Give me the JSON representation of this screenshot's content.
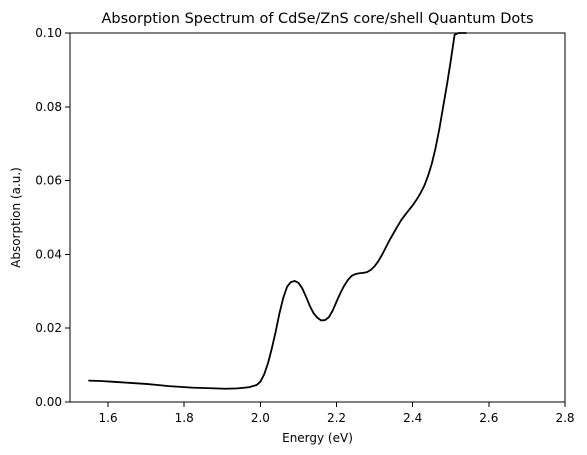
{
  "chart_data": {
    "type": "line",
    "title": "Absorption Spectrum of CdSe/ZnS core/shell Quantum Dots",
    "xlabel": "Energy (eV)",
    "ylabel": "Absorption (a.u.)",
    "xlim": [
      1.5,
      2.8
    ],
    "ylim": [
      0.0,
      0.1
    ],
    "xticks": [
      1.6,
      1.8,
      2.0,
      2.2,
      2.4,
      2.6,
      2.8
    ],
    "xtick_labels": [
      "1.6",
      "1.8",
      "2.0",
      "2.2",
      "2.4",
      "2.6",
      "2.8"
    ],
    "yticks": [
      0.0,
      0.02,
      0.04,
      0.06,
      0.08,
      0.1
    ],
    "ytick_labels": [
      "0.00",
      "0.02",
      "0.04",
      "0.06",
      "0.08",
      "0.10"
    ],
    "grid": false,
    "legend": false,
    "line_color": "#000000",
    "series": [
      {
        "x": [
          1.55,
          1.58,
          1.61,
          1.64,
          1.67,
          1.7,
          1.73,
          1.76,
          1.79,
          1.82,
          1.85,
          1.88,
          1.91,
          1.94,
          1.97,
          1.99,
          2.0,
          2.01,
          2.02,
          2.03,
          2.04,
          2.05,
          2.06,
          2.07,
          2.08,
          2.09,
          2.1,
          2.11,
          2.12,
          2.13,
          2.14,
          2.15,
          2.16,
          2.17,
          2.18,
          2.19,
          2.2,
          2.21,
          2.22,
          2.23,
          2.24,
          2.25,
          2.26,
          2.27,
          2.28,
          2.29,
          2.3,
          2.31,
          2.32,
          2.33,
          2.34,
          2.35,
          2.36,
          2.37,
          2.38,
          2.39,
          2.4,
          2.41,
          2.42,
          2.43,
          2.44,
          2.45,
          2.46,
          2.47,
          2.48,
          2.49,
          2.5,
          2.51,
          2.52,
          2.53,
          2.54
        ],
        "y": [
          0.0058,
          0.0057,
          0.0055,
          0.0053,
          0.0051,
          0.0049,
          0.0046,
          0.0043,
          0.0041,
          0.0039,
          0.0038,
          0.0037,
          0.0036,
          0.0037,
          0.004,
          0.0046,
          0.0055,
          0.0075,
          0.0105,
          0.0145,
          0.019,
          0.024,
          0.0282,
          0.0312,
          0.0325,
          0.0328,
          0.0323,
          0.0308,
          0.0285,
          0.026,
          0.024,
          0.0228,
          0.0221,
          0.0222,
          0.023,
          0.0248,
          0.0272,
          0.0295,
          0.0315,
          0.0331,
          0.0342,
          0.0347,
          0.0349,
          0.035,
          0.0352,
          0.0358,
          0.0368,
          0.0382,
          0.04,
          0.042,
          0.044,
          0.0458,
          0.0476,
          0.0493,
          0.0507,
          0.052,
          0.0533,
          0.0548,
          0.0565,
          0.0585,
          0.0612,
          0.0645,
          0.0688,
          0.074,
          0.08,
          0.086,
          0.0925,
          0.0995,
          0.1,
          0.1,
          0.1
        ]
      }
    ]
  }
}
